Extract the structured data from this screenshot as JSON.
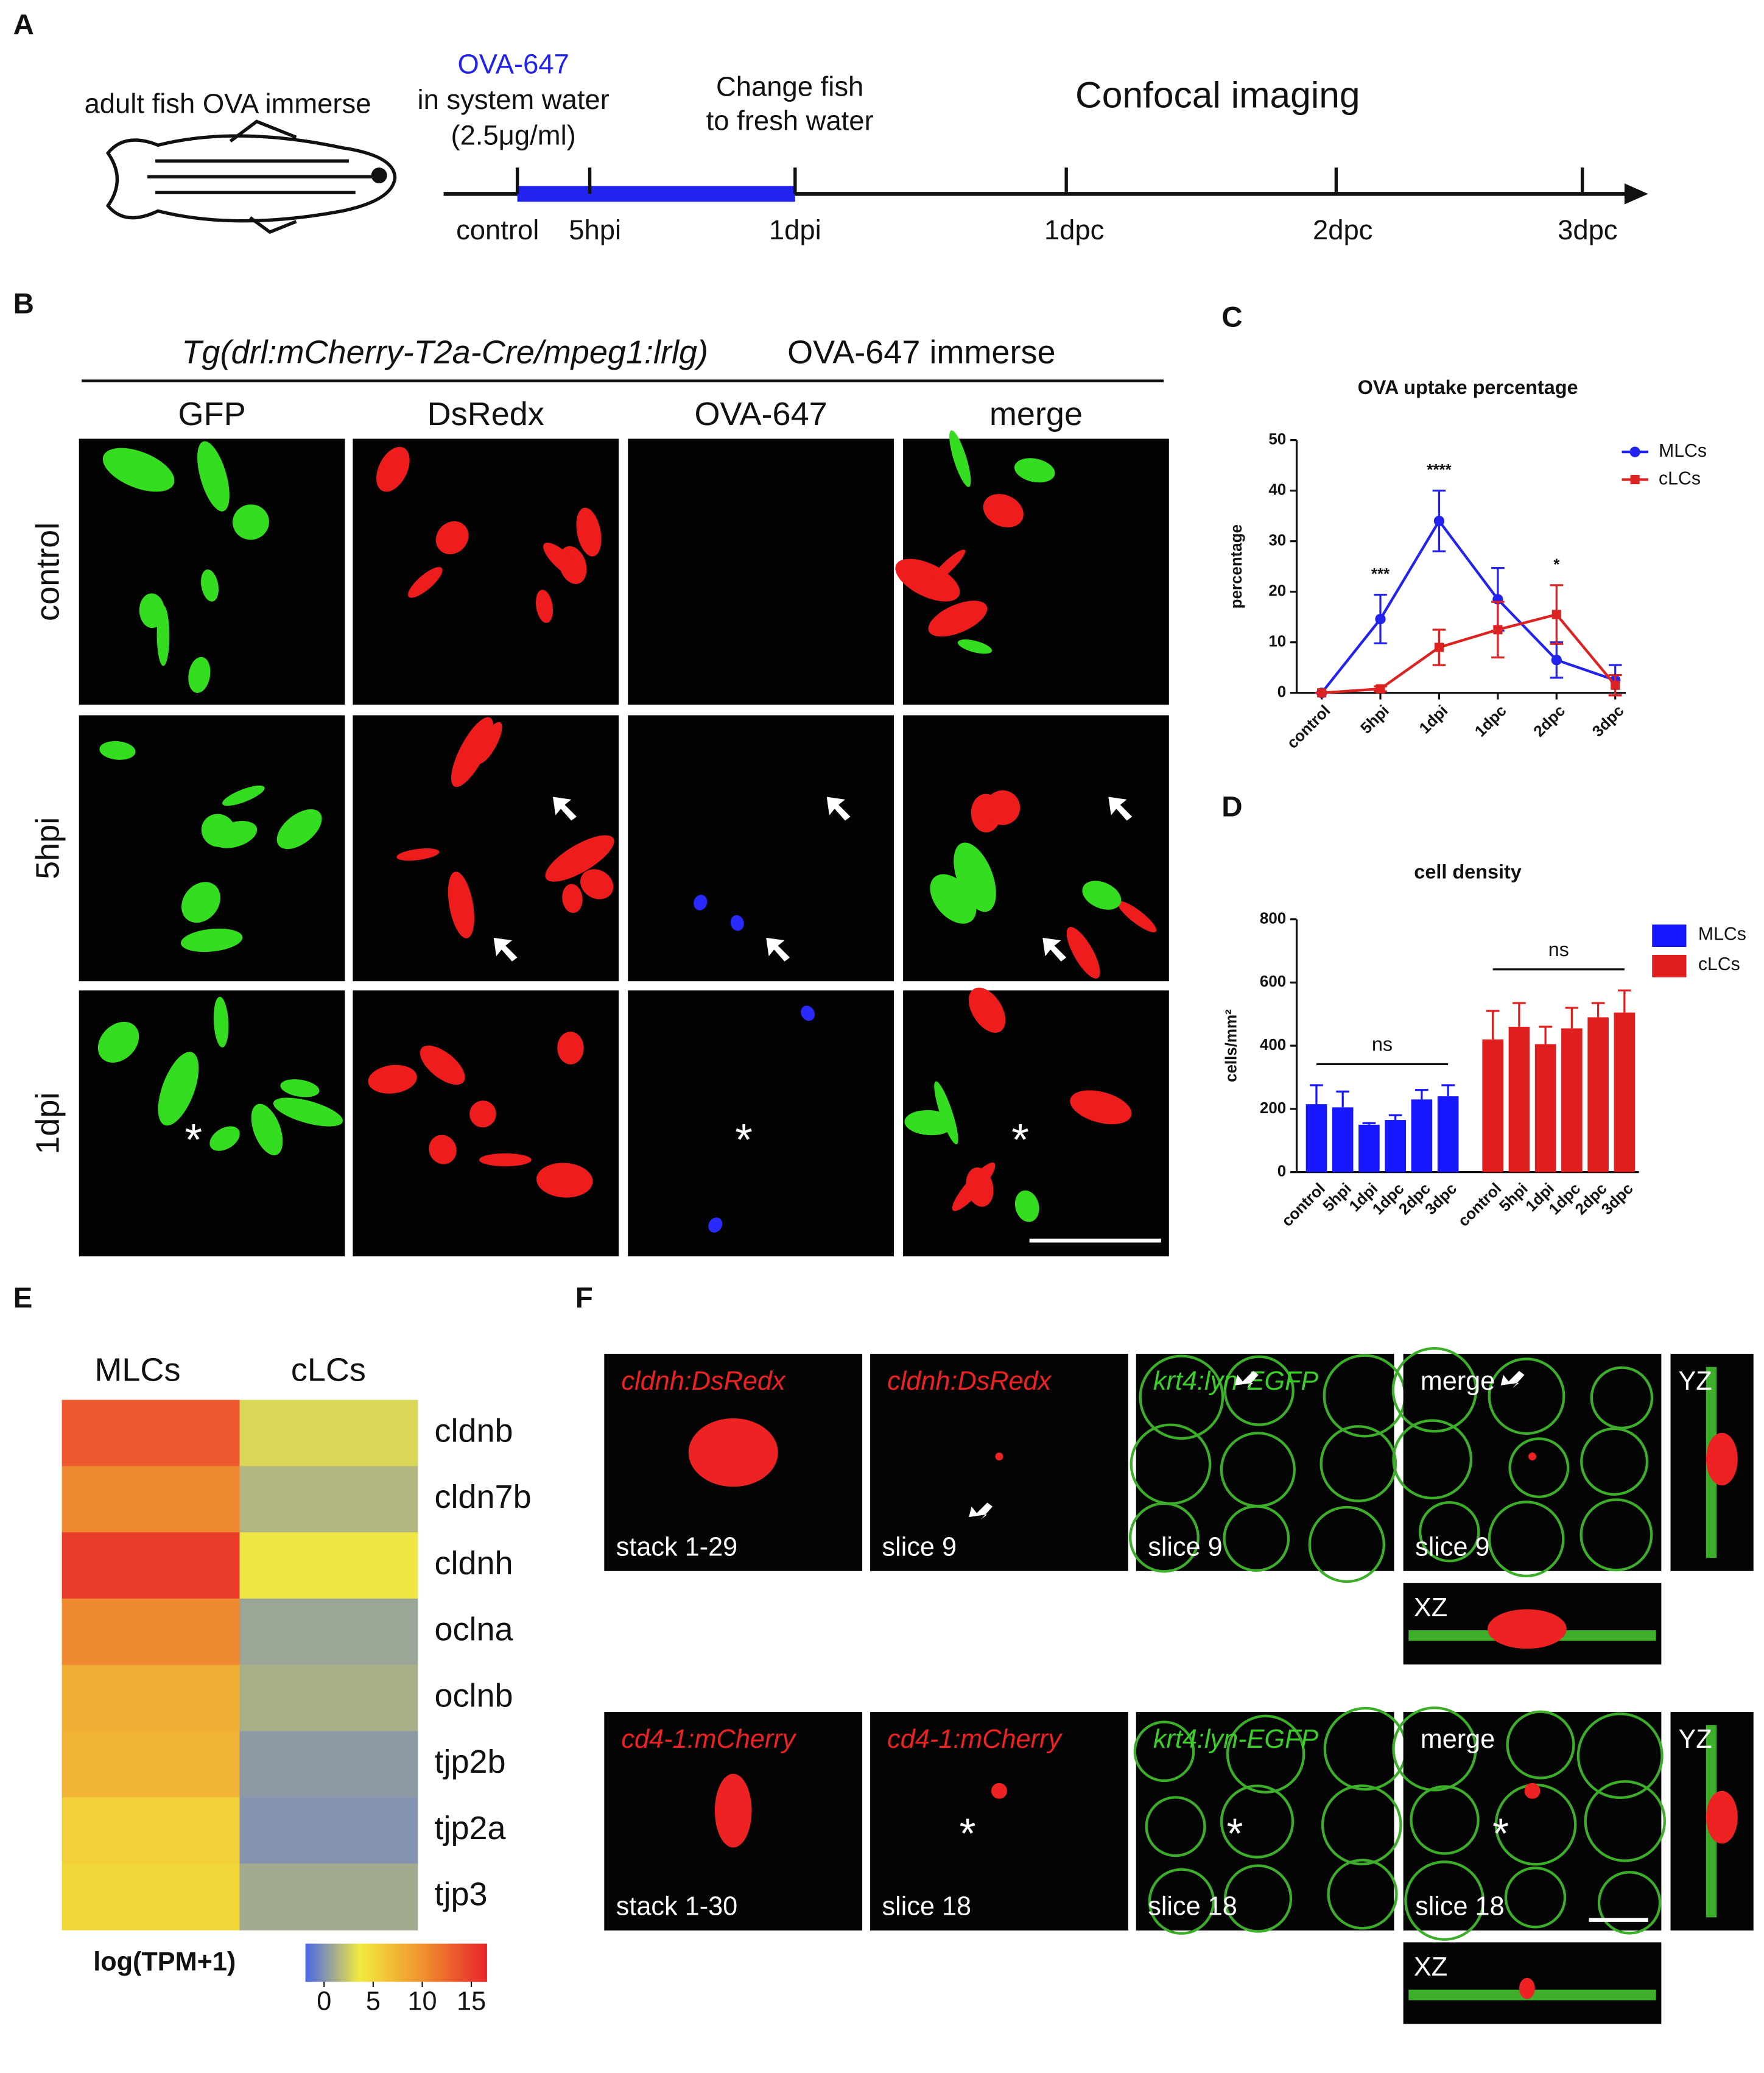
{
  "panel_a": {
    "letter": "A",
    "fish_label": "adult fish OVA immerse",
    "stain": "OVA-647",
    "stain_lines": [
      "in system water",
      "(2.5μg/ml)"
    ],
    "change": [
      "Change fish",
      "to fresh water"
    ],
    "imaging": "Confocal imaging",
    "timepoints": [
      "control",
      "5hpi",
      "1dpi",
      "1dpc",
      "2dpc",
      "3dpc"
    ]
  },
  "panel_b": {
    "letter": "B",
    "transgene": "Tg(drl:mCherry-T2a-Cre/mpeg1:lrlg)",
    "treatment": "OVA-647 immerse",
    "columns": [
      "GFP",
      "DsRedx",
      "OVA-647",
      "merge"
    ],
    "rows": [
      "control",
      "5hpi",
      "1dpi"
    ],
    "asterisk": "*"
  },
  "chart_data": [
    {
      "type": "line",
      "panel": "C",
      "title": "OVA uptake percentage",
      "ylabel": "percentage",
      "categories": [
        "control",
        "5hpi",
        "1dpi",
        "1dpc",
        "2dpc",
        "3dpc"
      ],
      "series": [
        {
          "name": "MLCs",
          "color": "#2323ee",
          "marker": "circle",
          "values": [
            0,
            14.6,
            34,
            18.5,
            6.5,
            2.5
          ],
          "errors": [
            0,
            4.8,
            6,
            6.2,
            3.5,
            3
          ]
        },
        {
          "name": "cLCs",
          "color": "#dd2222",
          "marker": "square",
          "values": [
            0,
            0.8,
            9,
            12.5,
            15.5,
            1.5
          ],
          "errors": [
            0,
            0.5,
            3.5,
            5.5,
            5.8,
            2
          ]
        }
      ],
      "significance": [
        null,
        "***",
        "****",
        null,
        "*",
        null
      ],
      "ylim": [
        0,
        50
      ],
      "yticks": [
        0,
        10,
        20,
        30,
        40,
        50
      ]
    },
    {
      "type": "bar",
      "panel": "D",
      "title": "cell density",
      "ylabel": "cells/mm²",
      "categories": [
        "control",
        "5hpi",
        "1dpi",
        "1dpc",
        "2dpc",
        "3dpc"
      ],
      "series": [
        {
          "name": "MLCs",
          "color": "#1616ff",
          "values": [
            215,
            205,
            150,
            165,
            230,
            240
          ],
          "errors": [
            60,
            50,
            5,
            15,
            30,
            35
          ],
          "annotation": "ns"
        },
        {
          "name": "cLCs",
          "color": "#e01e1e",
          "values": [
            420,
            460,
            405,
            455,
            490,
            505
          ],
          "errors": [
            90,
            75,
            55,
            65,
            45,
            70
          ],
          "annotation": "ns"
        }
      ],
      "ylim": [
        0,
        800
      ],
      "yticks": [
        0,
        200,
        400,
        600,
        800
      ]
    },
    {
      "type": "heatmap",
      "panel": "E",
      "columns": [
        "MLCs",
        "cLCs"
      ],
      "rows": [
        "cldnb",
        "cldn7b",
        "cldnh",
        "oclna",
        "oclnb",
        "tjp2b",
        "tjp2a",
        "tjp3"
      ],
      "values": [
        [
          13.5,
          2.8
        ],
        [
          10.5,
          1.5
        ],
        [
          15,
          3.5
        ],
        [
          10.5,
          0.8
        ],
        [
          8,
          1.2
        ],
        [
          7.5,
          0.3
        ],
        [
          5.5,
          0
        ],
        [
          5,
          1
        ]
      ],
      "colorbar_label": "log(TPM+1)",
      "clim": [
        -1.9,
        16.6
      ],
      "cticks": [
        0,
        5,
        10,
        15
      ],
      "colors": [
        "#4a66ea",
        "#f3ea3e",
        "#f09030",
        "#e8232a"
      ]
    }
  ],
  "panel_f": {
    "letter": "F",
    "rows": [
      {
        "channels": [
          "cldnh:DsRedx",
          "cldnh:DsRedx",
          "krt4:lyn-EGFP",
          "merge"
        ],
        "slices": [
          "stack 1-29",
          "slice 9",
          "slice 9",
          "slice 9"
        ]
      },
      {
        "channels": [
          "cd4-1:mCherry",
          "cd4-1:mCherry",
          "krt4:lyn-EGFP",
          "merge"
        ],
        "slices": [
          "stack 1-30",
          "slice 18",
          "slice 18",
          "slice 18"
        ]
      }
    ],
    "yz": "YZ",
    "xz": "XZ",
    "asterisk": "*"
  }
}
